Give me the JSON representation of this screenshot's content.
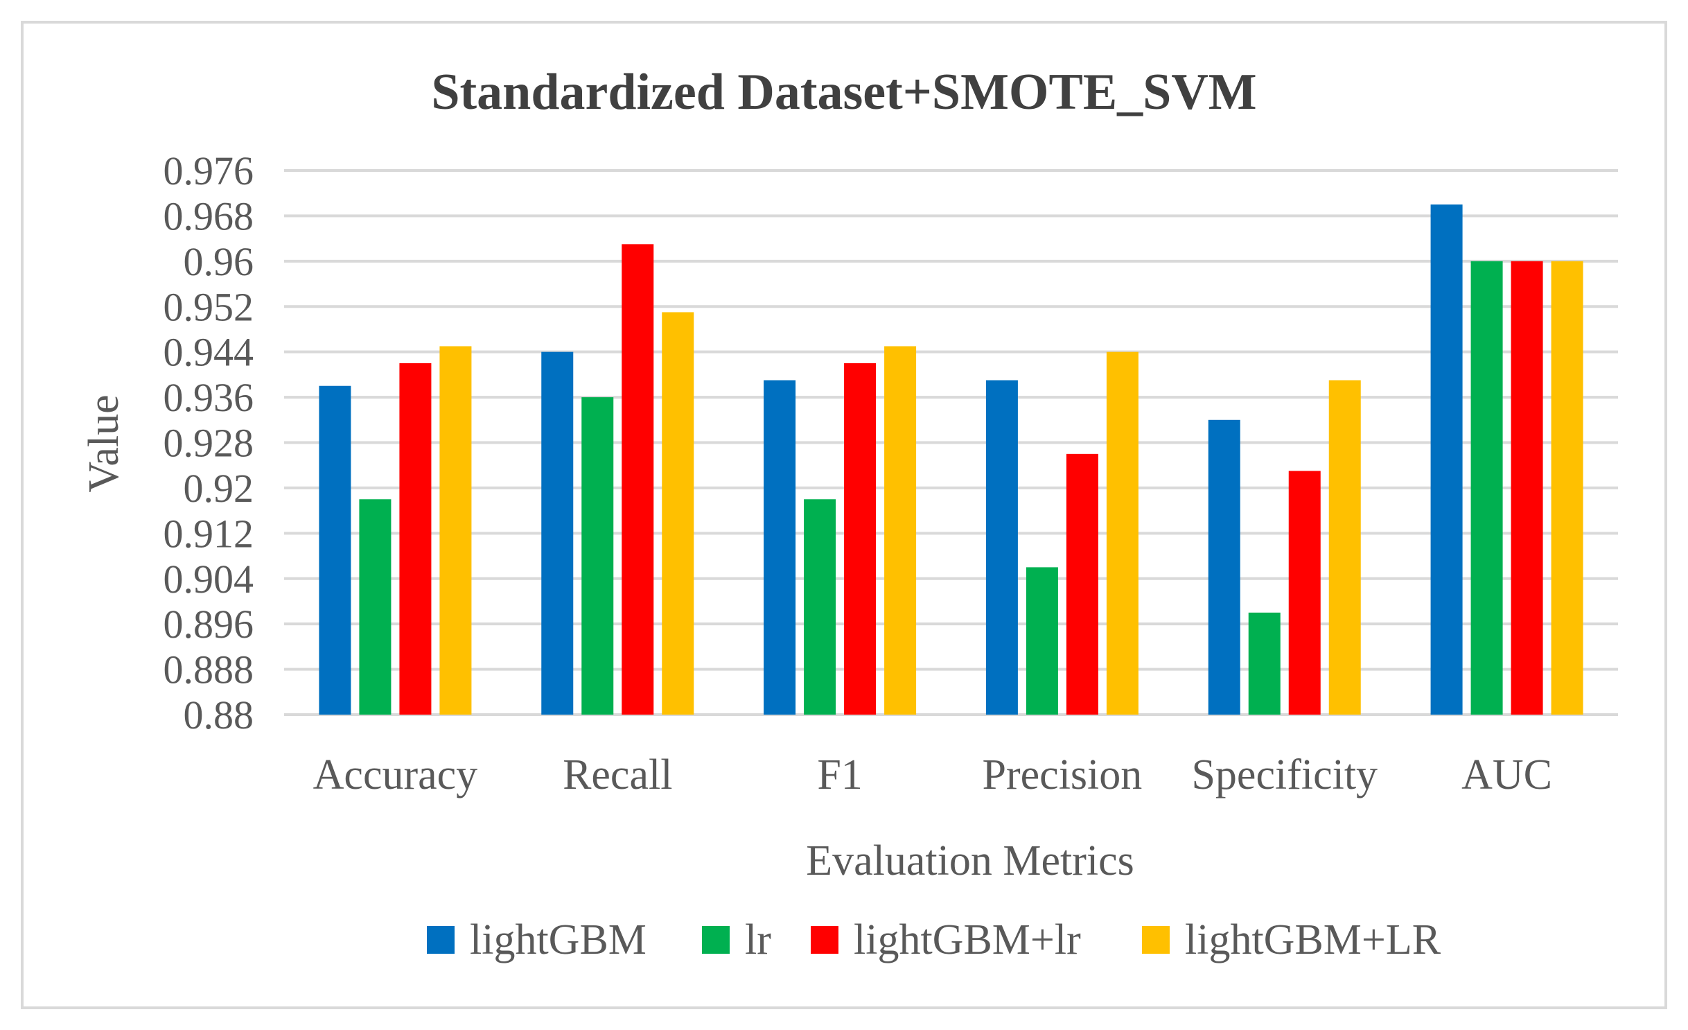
{
  "chart_data": {
    "type": "bar",
    "title": "Standardized Dataset+SMOTE_SVM",
    "xlabel": "Evaluation Metrics",
    "ylabel": "Value",
    "ylim": [
      0.88,
      0.976
    ],
    "yticks": [
      "0.88",
      "0.888",
      "0.896",
      "0.904",
      "0.912",
      "0.92",
      "0.928",
      "0.936",
      "0.944",
      "0.952",
      "0.96",
      "0.968",
      "0.976"
    ],
    "grid": true,
    "legend_position": "bottom",
    "categories": [
      "Accuracy",
      "Recall",
      "F1",
      "Precision",
      "Specificity",
      "AUC"
    ],
    "series": [
      {
        "name": "lightGBM",
        "color": "#0070C0",
        "values": [
          0.938,
          0.944,
          0.939,
          0.939,
          0.932,
          0.97
        ]
      },
      {
        "name": "lr",
        "color": "#00B050",
        "values": [
          0.918,
          0.936,
          0.918,
          0.906,
          0.898,
          0.96
        ]
      },
      {
        "name": "lightGBM+lr",
        "color": "#FF0000",
        "values": [
          0.942,
          0.963,
          0.942,
          0.926,
          0.923,
          0.96
        ]
      },
      {
        "name": "lightGBM+LR",
        "color": "#FFC000",
        "values": [
          0.945,
          0.951,
          0.945,
          0.944,
          0.939,
          0.96
        ]
      }
    ]
  }
}
